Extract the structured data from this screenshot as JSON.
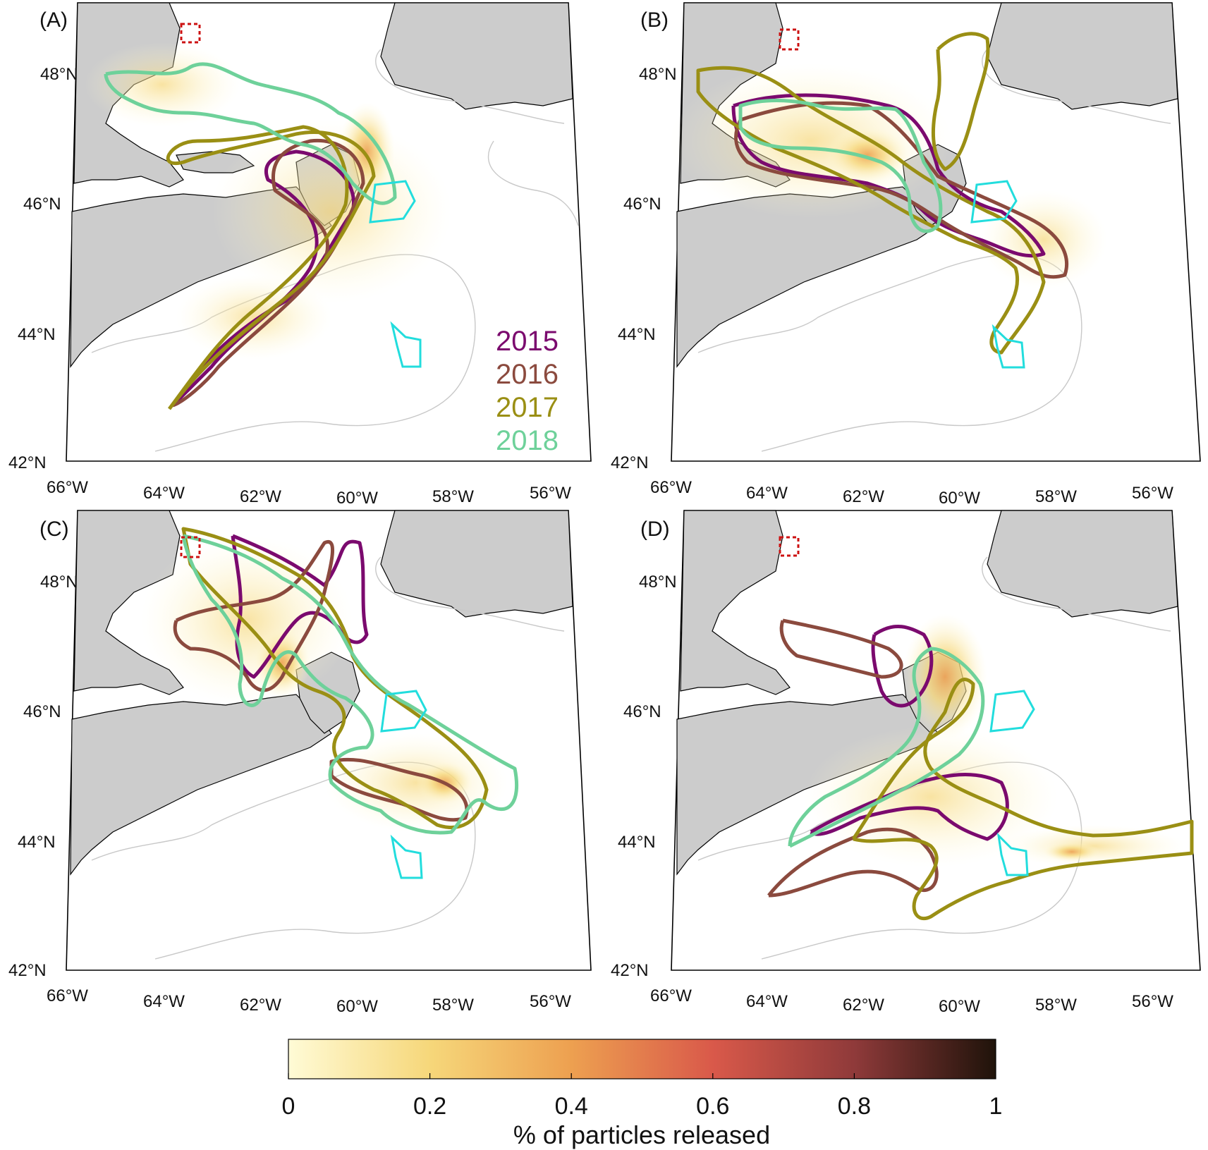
{
  "panels": [
    {
      "letter": "(A)",
      "lat_labels": [
        "48°N",
        "46°N",
        "44°N",
        "42°N"
      ],
      "lon_labels": [
        "66°W",
        "64°W",
        "62°W",
        "60°W",
        "58°W",
        "56°W"
      ]
    },
    {
      "letter": "(B)",
      "lat_labels": [
        "48°N",
        "46°N",
        "44°N",
        "42°N"
      ],
      "lon_labels": [
        "66°W",
        "64°W",
        "62°W",
        "60°W",
        "58°W",
        "56°W"
      ]
    },
    {
      "letter": "(C)",
      "lat_labels": [
        "48°N",
        "46°N",
        "44°N",
        "42°N"
      ],
      "lon_labels": [
        "66°W",
        "64°W",
        "62°W",
        "60°W",
        "58°W",
        "56°W"
      ]
    },
    {
      "letter": "(D)",
      "lat_labels": [
        "48°N",
        "46°N",
        "44°N",
        "42°N"
      ],
      "lon_labels": [
        "66°W",
        "64°W",
        "62°W",
        "60°W",
        "58°W",
        "56°W"
      ]
    }
  ],
  "legend": [
    {
      "year": "2015",
      "color": "#7b0a6e"
    },
    {
      "year": "2016",
      "color": "#8b4a3e"
    },
    {
      "year": "2017",
      "color": "#9a8f14"
    },
    {
      "year": "2018",
      "color": "#6ed19a"
    }
  ],
  "colorbar": {
    "title": "% of particles released",
    "ticks": [
      "0",
      "0.2",
      "0.4",
      "0.6",
      "0.8",
      "1"
    ],
    "stops": [
      "#fffbd6",
      "#f6d77a",
      "#eda050",
      "#d9594a",
      "#8f3a3a",
      "#1f130a"
    ]
  },
  "colors": {
    "land": "#cccccc",
    "coast": "#000000",
    "isobath": "#c8c8c8",
    "release_box": "#cc1111",
    "target_area": "#22dddd"
  }
}
